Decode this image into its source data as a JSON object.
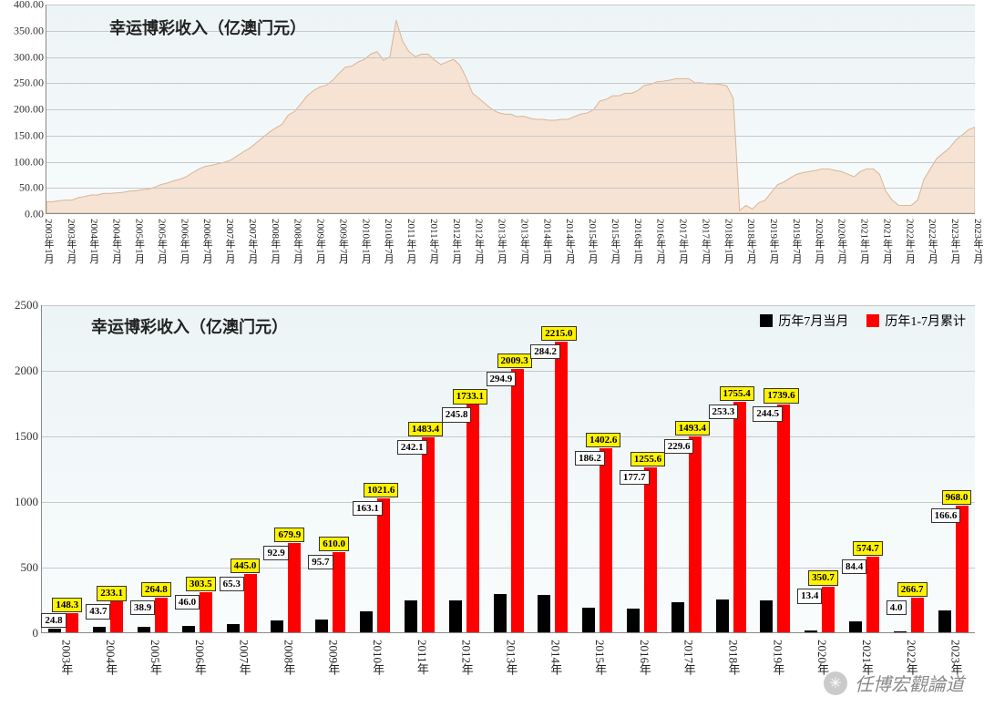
{
  "top_chart": {
    "type": "area",
    "title": "幸运博彩收入（亿澳门元）",
    "title_fontsize": 18,
    "background_gradient": [
      "#ecf4f6",
      "#f7fbfc"
    ],
    "grid_color": "#c8c8c8",
    "area_fill": "#f6e3d3",
    "area_stroke": "#d9b596",
    "ylim": [
      0,
      400
    ],
    "ytick_step": 50,
    "ylabels": [
      "0.00",
      "50.00",
      "100.00",
      "150.00",
      "200.00",
      "250.00",
      "300.00",
      "350.00",
      "400.00"
    ],
    "xlabels": [
      "2003年1月",
      "2003年7月",
      "2004年1月",
      "2004年7月",
      "2005年1月",
      "2005年7月",
      "2006年1月",
      "2006年7月",
      "2007年1月",
      "2007年7月",
      "2008年1月",
      "2008年7月",
      "2009年1月",
      "2009年7月",
      "2010年1月",
      "2010年7月",
      "2011年1月",
      "2011年7月",
      "2012年1月",
      "2012年7月",
      "2013年1月",
      "2013年7月",
      "2014年1月",
      "2014年7月",
      "2015年1月",
      "2015年7月",
      "2016年1月",
      "2016年7月",
      "2017年1月",
      "2017年7月",
      "2018年1月",
      "2018年7月",
      "2019年1月",
      "2019年7月",
      "2020年1月",
      "2020年7月",
      "2021年1月",
      "2021年7月",
      "2022年1月",
      "2022年7月",
      "2023年1月",
      "2023年7月"
    ],
    "values": [
      22,
      22,
      24,
      25,
      25,
      30,
      32,
      35,
      35,
      38,
      38,
      39,
      40,
      42,
      43,
      45,
      46,
      50,
      55,
      58,
      62,
      65,
      70,
      78,
      85,
      90,
      92,
      95,
      98,
      102,
      110,
      118,
      125,
      135,
      145,
      155,
      163,
      170,
      188,
      195,
      210,
      225,
      235,
      242,
      245,
      255,
      268,
      280,
      282,
      290,
      295,
      305,
      310,
      293,
      300,
      370,
      330,
      310,
      300,
      305,
      305,
      294,
      285,
      290,
      295,
      284,
      260,
      230,
      220,
      210,
      200,
      193,
      190,
      190,
      185,
      186,
      182,
      180,
      180,
      178,
      178,
      180,
      180,
      185,
      190,
      192,
      198,
      215,
      218,
      225,
      225,
      230,
      230,
      235,
      245,
      247,
      252,
      253,
      255,
      258,
      258,
      258,
      250,
      250,
      248,
      248,
      247,
      244,
      220,
      5,
      15,
      8,
      20,
      25,
      40,
      55,
      60,
      68,
      75,
      78,
      80,
      82,
      85,
      85,
      82,
      80,
      75,
      70,
      80,
      85,
      85,
      75,
      42,
      25,
      15,
      15,
      15,
      25,
      65,
      85,
      105,
      115,
      125,
      140,
      150,
      160,
      165
    ]
  },
  "bottom_chart": {
    "type": "bar",
    "title": "幸运博彩收入（亿澳门元）",
    "title_fontsize": 18,
    "background_gradient": [
      "#ecf4f6",
      "#f9fcfd"
    ],
    "grid_color": "#c8c8c8",
    "ylim": [
      0,
      2500
    ],
    "ytick_step": 500,
    "ylabels": [
      "0",
      "500",
      "1000",
      "1500",
      "2000",
      "2500"
    ],
    "legend": [
      {
        "label": "历年7月当月",
        "color": "#000000"
      },
      {
        "label": "历年1-7月累计",
        "color": "#ff0000"
      }
    ],
    "categories": [
      "2003年",
      "2004年",
      "2005年",
      "2006年",
      "2007年",
      "2008年",
      "2009年",
      "2010年",
      "2011年",
      "2012年",
      "2013年",
      "2014年",
      "2015年",
      "2016年",
      "2017年",
      "2018年",
      "2019年",
      "2020年",
      "2021年",
      "2022年",
      "2023年"
    ],
    "series": {
      "july": {
        "color": "#000000",
        "label_bg": "#ffffff",
        "values": [
          24.8,
          43.7,
          38.9,
          46.0,
          65.3,
          92.9,
          95.7,
          163.1,
          242.1,
          245.8,
          294.9,
          284.2,
          186.2,
          177.7,
          229.6,
          253.3,
          244.5,
          13.4,
          84.4,
          4.0,
          166.6
        ]
      },
      "cumulative": {
        "color": "#ff0000",
        "label_bg": "#fff200",
        "values": [
          148.3,
          233.1,
          264.8,
          303.5,
          445.0,
          679.9,
          610.0,
          1021.6,
          1483.4,
          1733.1,
          2009.3,
          2215.0,
          1402.6,
          1255.6,
          1493.4,
          1755.4,
          1739.6,
          350.7,
          574.7,
          266.7,
          968.0
        ]
      }
    }
  },
  "watermark": {
    "text": "任博宏觀論道",
    "icon": "wechat-icon"
  }
}
